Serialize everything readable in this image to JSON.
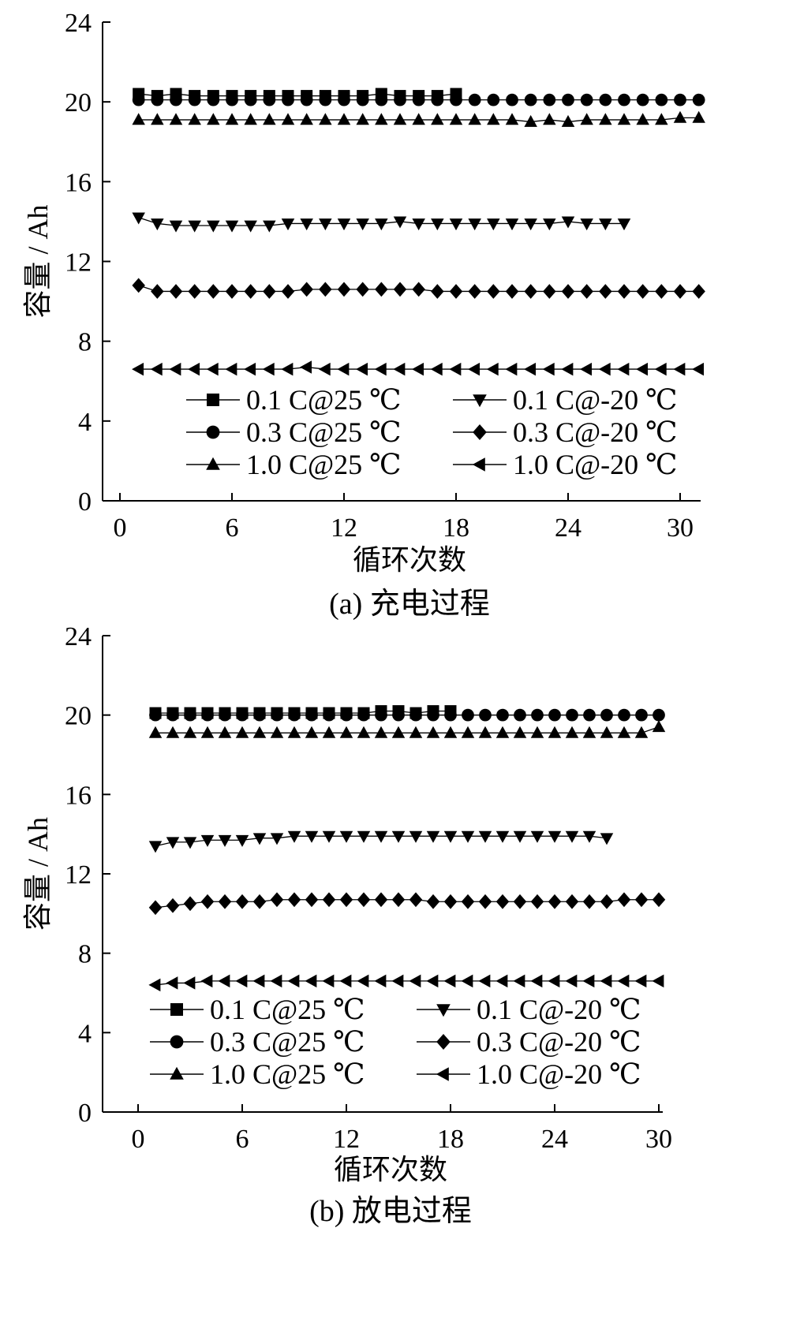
{
  "chart_data": [
    {
      "type": "line",
      "caption": "(a)  充电过程",
      "xlabel": "循环次数",
      "ylabel": "容量 / Ah",
      "xlim": [
        -0.5,
        31
      ],
      "ylim": [
        0,
        24
      ],
      "xticks": [
        0,
        6,
        12,
        18,
        24,
        30
      ],
      "yticks": [
        0,
        4,
        8,
        12,
        16,
        20,
        24
      ],
      "grid": false,
      "legend": "lower-center",
      "series": [
        {
          "name": "0.1 C@25 ℃",
          "marker": "square",
          "x": [
            1,
            2,
            3,
            4,
            5,
            6,
            7,
            8,
            9,
            10,
            11,
            12,
            13,
            14,
            15,
            16,
            17,
            18
          ],
          "y": [
            20.4,
            20.3,
            20.4,
            20.3,
            20.3,
            20.3,
            20.3,
            20.3,
            20.3,
            20.3,
            20.3,
            20.3,
            20.3,
            20.4,
            20.3,
            20.3,
            20.3,
            20.4
          ]
        },
        {
          "name": "0.3 C@25 ℃",
          "marker": "circle",
          "x": [
            1,
            2,
            3,
            4,
            5,
            6,
            7,
            8,
            9,
            10,
            11,
            12,
            13,
            14,
            15,
            16,
            17,
            18,
            19,
            20,
            21,
            22,
            23,
            24,
            25,
            26,
            27,
            28,
            29,
            30,
            31
          ],
          "y": [
            20.1,
            20.1,
            20.1,
            20.1,
            20.1,
            20.1,
            20.1,
            20.1,
            20.1,
            20.1,
            20.1,
            20.1,
            20.1,
            20.1,
            20.1,
            20.1,
            20.1,
            20.1,
            20.1,
            20.1,
            20.1,
            20.1,
            20.1,
            20.1,
            20.1,
            20.1,
            20.1,
            20.1,
            20.1,
            20.1,
            20.1
          ]
        },
        {
          "name": "1.0 C@25 ℃",
          "marker": "triangle-up",
          "x": [
            1,
            2,
            3,
            4,
            5,
            6,
            7,
            8,
            9,
            10,
            11,
            12,
            13,
            14,
            15,
            16,
            17,
            18,
            19,
            20,
            21,
            22,
            23,
            24,
            25,
            26,
            27,
            28,
            29,
            30,
            31
          ],
          "y": [
            19.1,
            19.1,
            19.1,
            19.1,
            19.1,
            19.1,
            19.1,
            19.1,
            19.1,
            19.1,
            19.1,
            19.1,
            19.1,
            19.1,
            19.1,
            19.1,
            19.1,
            19.1,
            19.1,
            19.1,
            19.1,
            19.0,
            19.1,
            19.0,
            19.1,
            19.1,
            19.1,
            19.1,
            19.1,
            19.2,
            19.2
          ]
        },
        {
          "name": "0.1 C@-20 ℃",
          "marker": "triangle-down",
          "x": [
            1,
            2,
            3,
            4,
            5,
            6,
            7,
            8,
            9,
            10,
            11,
            12,
            13,
            14,
            15,
            16,
            17,
            18,
            19,
            20,
            21,
            22,
            23,
            24,
            25,
            26,
            27
          ],
          "y": [
            14.2,
            13.9,
            13.8,
            13.8,
            13.8,
            13.8,
            13.8,
            13.8,
            13.9,
            13.9,
            13.9,
            13.9,
            13.9,
            13.9,
            14.0,
            13.9,
            13.9,
            13.9,
            13.9,
            13.9,
            13.9,
            13.9,
            13.9,
            14.0,
            13.9,
            13.9,
            13.9
          ]
        },
        {
          "name": "0.3 C@-20 ℃",
          "marker": "diamond",
          "x": [
            1,
            2,
            3,
            4,
            5,
            6,
            7,
            8,
            9,
            10,
            11,
            12,
            13,
            14,
            15,
            16,
            17,
            18,
            19,
            20,
            21,
            22,
            23,
            24,
            25,
            26,
            27,
            28,
            29,
            30,
            31
          ],
          "y": [
            10.8,
            10.5,
            10.5,
            10.5,
            10.5,
            10.5,
            10.5,
            10.5,
            10.5,
            10.6,
            10.6,
            10.6,
            10.6,
            10.6,
            10.6,
            10.6,
            10.5,
            10.5,
            10.5,
            10.5,
            10.5,
            10.5,
            10.5,
            10.5,
            10.5,
            10.5,
            10.5,
            10.5,
            10.5,
            10.5,
            10.5
          ]
        },
        {
          "name": "1.0 C@-20 ℃",
          "marker": "triangle-left",
          "x": [
            1,
            2,
            3,
            4,
            5,
            6,
            7,
            8,
            9,
            10,
            11,
            12,
            13,
            14,
            15,
            16,
            17,
            18,
            19,
            20,
            21,
            22,
            23,
            24,
            25,
            26,
            27,
            28,
            29,
            30,
            31
          ],
          "y": [
            6.6,
            6.6,
            6.6,
            6.6,
            6.6,
            6.6,
            6.6,
            6.6,
            6.6,
            6.7,
            6.6,
            6.6,
            6.6,
            6.6,
            6.6,
            6.6,
            6.6,
            6.6,
            6.6,
            6.6,
            6.6,
            6.6,
            6.6,
            6.6,
            6.6,
            6.6,
            6.6,
            6.6,
            6.6,
            6.6,
            6.6
          ]
        }
      ]
    },
    {
      "type": "line",
      "caption": "(b)  放电过程",
      "xlabel": "循环次数",
      "ylabel": "容量 / Ah",
      "xlim": [
        -2,
        30
      ],
      "ylim": [
        0,
        24
      ],
      "xticks": [
        0,
        6,
        12,
        18,
        24,
        30
      ],
      "yticks": [
        0,
        4,
        8,
        12,
        16,
        20,
        24
      ],
      "grid": false,
      "legend": "lower-center",
      "series": [
        {
          "name": "0.1 C@25 ℃",
          "marker": "square",
          "x": [
            1,
            2,
            3,
            4,
            5,
            6,
            7,
            8,
            9,
            10,
            11,
            12,
            13,
            14,
            15,
            16,
            17,
            18
          ],
          "y": [
            20.1,
            20.1,
            20.1,
            20.1,
            20.1,
            20.1,
            20.1,
            20.1,
            20.1,
            20.1,
            20.1,
            20.1,
            20.1,
            20.2,
            20.2,
            20.1,
            20.2,
            20.2
          ]
        },
        {
          "name": "0.3 C@25 ℃",
          "marker": "circle",
          "x": [
            1,
            2,
            3,
            4,
            5,
            6,
            7,
            8,
            9,
            10,
            11,
            12,
            13,
            14,
            15,
            16,
            17,
            18,
            19,
            20,
            21,
            22,
            23,
            24,
            25,
            26,
            27,
            28,
            29,
            30
          ],
          "y": [
            20.0,
            20.0,
            20.0,
            20.0,
            20.0,
            20.0,
            20.0,
            20.0,
            20.0,
            20.0,
            20.0,
            20.0,
            20.0,
            20.0,
            20.0,
            20.0,
            20.0,
            20.0,
            20.0,
            20.0,
            20.0,
            20.0,
            20.0,
            20.0,
            20.0,
            20.0,
            20.0,
            20.0,
            20.0,
            20.0
          ]
        },
        {
          "name": "1.0 C@25 ℃",
          "marker": "triangle-up",
          "x": [
            1,
            2,
            3,
            4,
            5,
            6,
            7,
            8,
            9,
            10,
            11,
            12,
            13,
            14,
            15,
            16,
            17,
            18,
            19,
            20,
            21,
            22,
            23,
            24,
            25,
            26,
            27,
            28,
            29,
            30
          ],
          "y": [
            19.1,
            19.1,
            19.1,
            19.1,
            19.1,
            19.1,
            19.1,
            19.1,
            19.1,
            19.1,
            19.1,
            19.1,
            19.1,
            19.1,
            19.1,
            19.1,
            19.1,
            19.1,
            19.1,
            19.1,
            19.1,
            19.1,
            19.1,
            19.1,
            19.1,
            19.1,
            19.1,
            19.1,
            19.1,
            19.4
          ]
        },
        {
          "name": "0.1 C@-20 ℃",
          "marker": "triangle-down",
          "x": [
            1,
            2,
            3,
            4,
            5,
            6,
            7,
            8,
            9,
            10,
            11,
            12,
            13,
            14,
            15,
            16,
            17,
            18,
            19,
            20,
            21,
            22,
            23,
            24,
            25,
            26,
            27
          ],
          "y": [
            13.4,
            13.6,
            13.6,
            13.7,
            13.7,
            13.7,
            13.8,
            13.8,
            13.9,
            13.9,
            13.9,
            13.9,
            13.9,
            13.9,
            13.9,
            13.9,
            13.9,
            13.9,
            13.9,
            13.9,
            13.9,
            13.9,
            13.9,
            13.9,
            13.9,
            13.9,
            13.8
          ]
        },
        {
          "name": "0.3 C@-20 ℃",
          "marker": "diamond",
          "x": [
            1,
            2,
            3,
            4,
            5,
            6,
            7,
            8,
            9,
            10,
            11,
            12,
            13,
            14,
            15,
            16,
            17,
            18,
            19,
            20,
            21,
            22,
            23,
            24,
            25,
            26,
            27,
            28,
            29,
            30
          ],
          "y": [
            10.3,
            10.4,
            10.5,
            10.6,
            10.6,
            10.6,
            10.6,
            10.7,
            10.7,
            10.7,
            10.7,
            10.7,
            10.7,
            10.7,
            10.7,
            10.7,
            10.6,
            10.6,
            10.6,
            10.6,
            10.6,
            10.6,
            10.6,
            10.6,
            10.6,
            10.6,
            10.6,
            10.7,
            10.7,
            10.7
          ]
        },
        {
          "name": "1.0 C@-20 ℃",
          "marker": "triangle-left",
          "x": [
            1,
            2,
            3,
            4,
            5,
            6,
            7,
            8,
            9,
            10,
            11,
            12,
            13,
            14,
            15,
            16,
            17,
            18,
            19,
            20,
            21,
            22,
            23,
            24,
            25,
            26,
            27,
            28,
            29,
            30
          ],
          "y": [
            6.4,
            6.5,
            6.5,
            6.6,
            6.6,
            6.6,
            6.6,
            6.6,
            6.6,
            6.6,
            6.6,
            6.6,
            6.6,
            6.6,
            6.6,
            6.6,
            6.6,
            6.6,
            6.6,
            6.6,
            6.6,
            6.6,
            6.6,
            6.6,
            6.6,
            6.6,
            6.6,
            6.6,
            6.6,
            6.6
          ]
        }
      ]
    }
  ]
}
